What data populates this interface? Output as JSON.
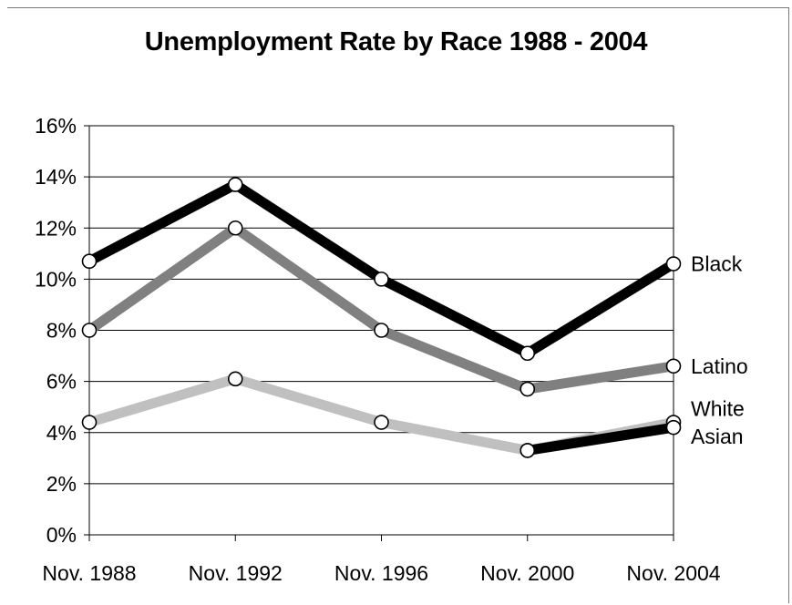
{
  "chart_data": {
    "type": "line",
    "title": "Unemployment Rate by Race 1988 - 2004",
    "xlabel": "",
    "ylabel": "",
    "categories": [
      "Nov. 1988",
      "Nov. 1992",
      "Nov. 1996",
      "Nov. 2000",
      "Nov. 2004"
    ],
    "y_tick_labels": [
      "0%",
      "2%",
      "4%",
      "6%",
      "8%",
      "10%",
      "12%",
      "14%",
      "16%"
    ],
    "ylim": [
      0,
      16
    ],
    "y_unit": "%",
    "grid": "horizontal",
    "legend": "direct labels at right end of lines",
    "series": [
      {
        "name": "Black",
        "color": "#000000",
        "values": [
          10.7,
          13.7,
          10.0,
          7.1,
          10.6
        ]
      },
      {
        "name": "Latino",
        "color": "#808080",
        "values": [
          8.0,
          12.0,
          8.0,
          5.7,
          6.6
        ]
      },
      {
        "name": "White",
        "color": "#c0c0c0",
        "values": [
          4.4,
          6.1,
          4.4,
          3.3,
          4.4
        ]
      },
      {
        "name": "Asian",
        "color": "#000000",
        "values": [
          null,
          null,
          null,
          3.3,
          4.2
        ]
      }
    ],
    "marker": {
      "shape": "circle",
      "fill": "#ffffff",
      "stroke": "#000000"
    }
  }
}
